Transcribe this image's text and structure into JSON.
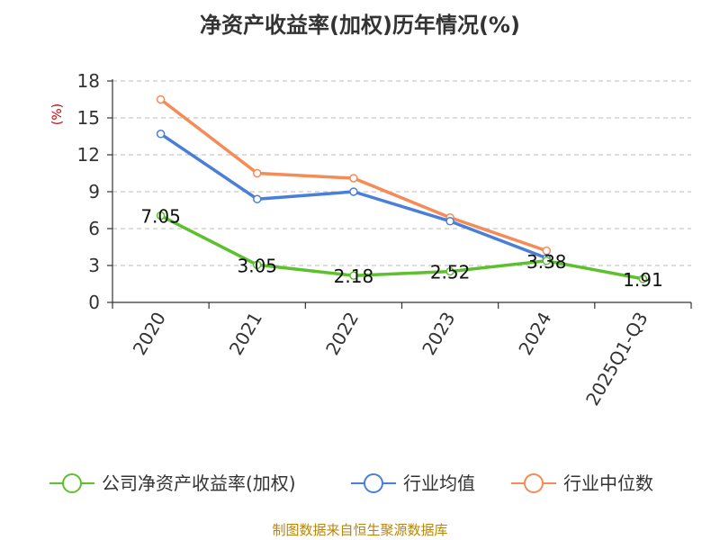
{
  "chart_data": {
    "type": "line",
    "title": "净资产收益率(加权)历年情况(%)",
    "ylabel": "(%)",
    "xlabel": "",
    "categories": [
      "2020",
      "2021",
      "2022",
      "2023",
      "2024",
      "2025Q1-Q3"
    ],
    "ylim": [
      0,
      18
    ],
    "yticks": [
      0,
      3,
      6,
      9,
      12,
      15,
      18
    ],
    "grid": true,
    "legend_position": "bottom",
    "series": [
      {
        "name": "公司净资产收益率(加权)",
        "color": "#5cc12c",
        "values": [
          7.05,
          3.05,
          2.18,
          2.52,
          3.38,
          1.91
        ],
        "labels": [
          "7.05",
          "3.05",
          "2.18",
          "2.52",
          "3.38",
          "1.91"
        ]
      },
      {
        "name": "行业均值",
        "color": "#4a7fd9",
        "values": [
          13.7,
          8.4,
          9.0,
          6.6,
          3.6,
          null
        ]
      },
      {
        "name": "行业中位数",
        "color": "#f58b56",
        "values": [
          16.5,
          10.5,
          10.1,
          6.9,
          4.2,
          null
        ]
      }
    ]
  },
  "source": "制图数据来自恒生聚源数据库"
}
